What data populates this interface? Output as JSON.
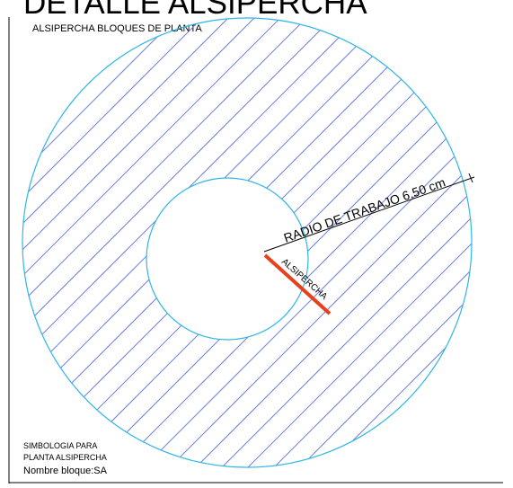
{
  "drawing": {
    "page_title": "DETALLE ALSIPERCHA",
    "frame_title": "ALSIPERCHA BLOQUES DE PLANTA",
    "dimension_label": "RADIO DE TRABAJO 6.50 cm",
    "element_label": "ALSIPERCHA",
    "legend": {
      "line1": "SIMBOLOGIA PARA",
      "line2": "PLANTA ALSIPERCHA",
      "line3": "Nombre bloque:SA"
    }
  },
  "colors": {
    "background": "#ffffff",
    "circle_stroke": "#2fb6e6",
    "hatch": "#6f7fd6",
    "element": "#e8401c",
    "text": "#000000",
    "frame": "#000000"
  }
}
